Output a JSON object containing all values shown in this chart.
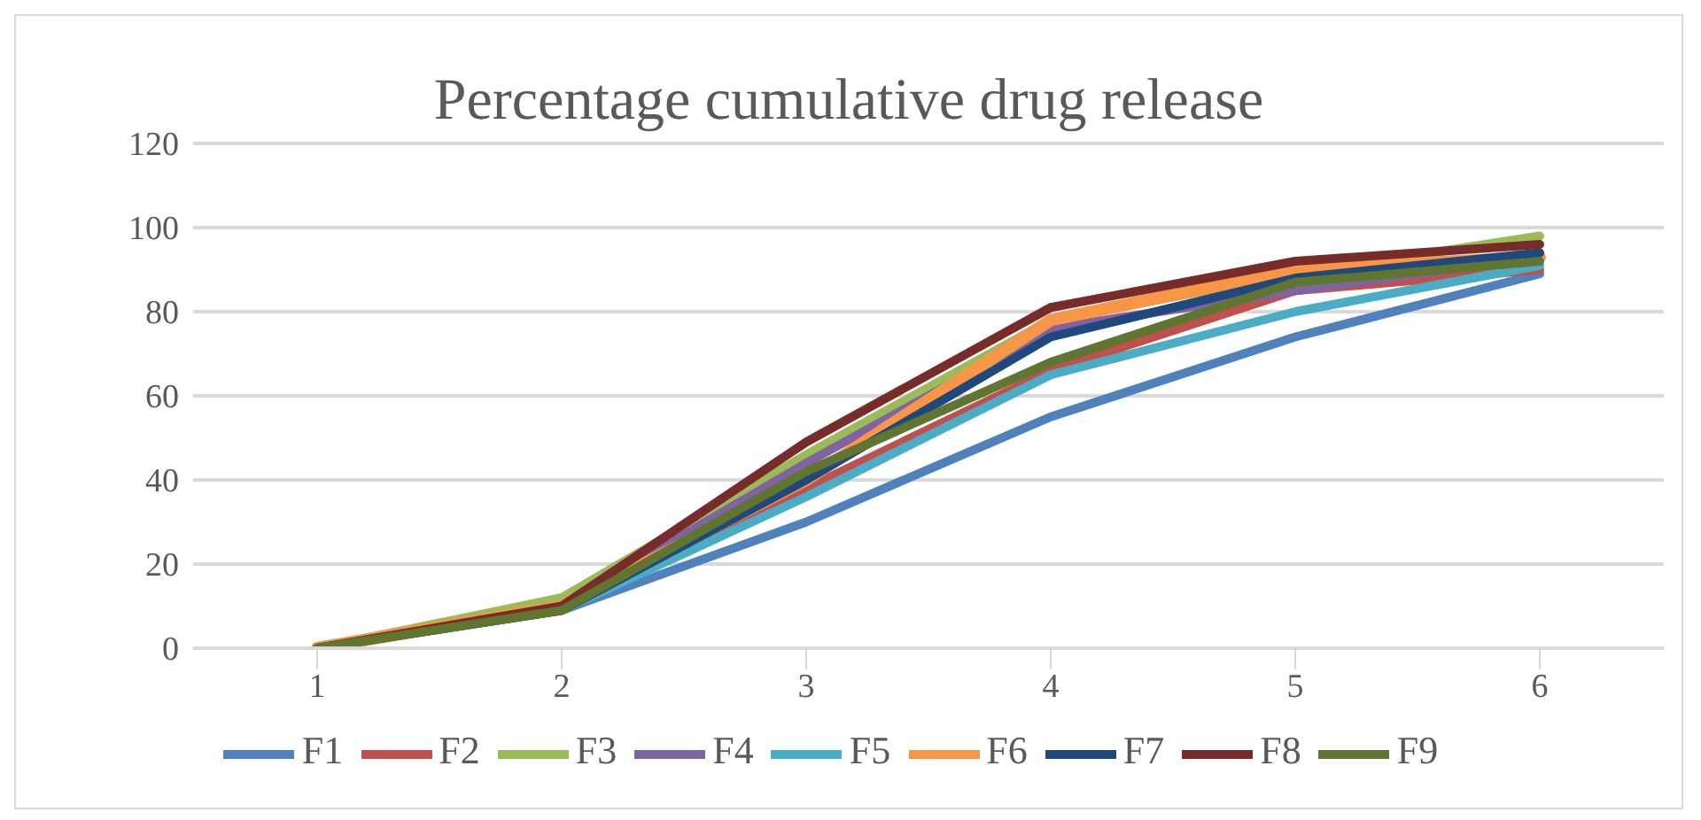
{
  "chart_data": {
    "type": "line",
    "title": "Percentage cumulative drug release",
    "categories": [
      "1",
      "2",
      "3",
      "4",
      "5",
      "6"
    ],
    "series": [
      {
        "name": "F1",
        "color": "#4f81bd",
        "values": [
          0,
          9,
          30,
          55,
          74,
          89
        ]
      },
      {
        "name": "F2",
        "color": "#c0504d",
        "values": [
          0,
          10,
          38,
          66,
          85,
          90
        ]
      },
      {
        "name": "F3",
        "color": "#9bbb59",
        "values": [
          0,
          12,
          46,
          78,
          89,
          98
        ]
      },
      {
        "name": "F4",
        "color": "#8064a2",
        "values": [
          0,
          10,
          44,
          76,
          85,
          93
        ]
      },
      {
        "name": "F5",
        "color": "#4bacc6",
        "values": [
          0,
          9,
          36,
          65,
          80,
          91
        ]
      },
      {
        "name": "F6",
        "color": "#f79646",
        "values": [
          0,
          10,
          40,
          78,
          90,
          93
        ]
      },
      {
        "name": "F7",
        "color": "#1f497d",
        "values": [
          0,
          9,
          40,
          74,
          88,
          94
        ]
      },
      {
        "name": "F8",
        "color": "#772c2a",
        "values": [
          0,
          10,
          49,
          81,
          92,
          96
        ]
      },
      {
        "name": "F9",
        "color": "#5f7530",
        "values": [
          0,
          9,
          42,
          68,
          87,
          92
        ]
      }
    ],
    "ylim": [
      0,
      120
    ],
    "yticks": [
      0,
      20,
      40,
      60,
      80,
      100,
      120
    ],
    "grid": "y",
    "legend": "bottom",
    "marker": "none",
    "line_style": "solid"
  }
}
